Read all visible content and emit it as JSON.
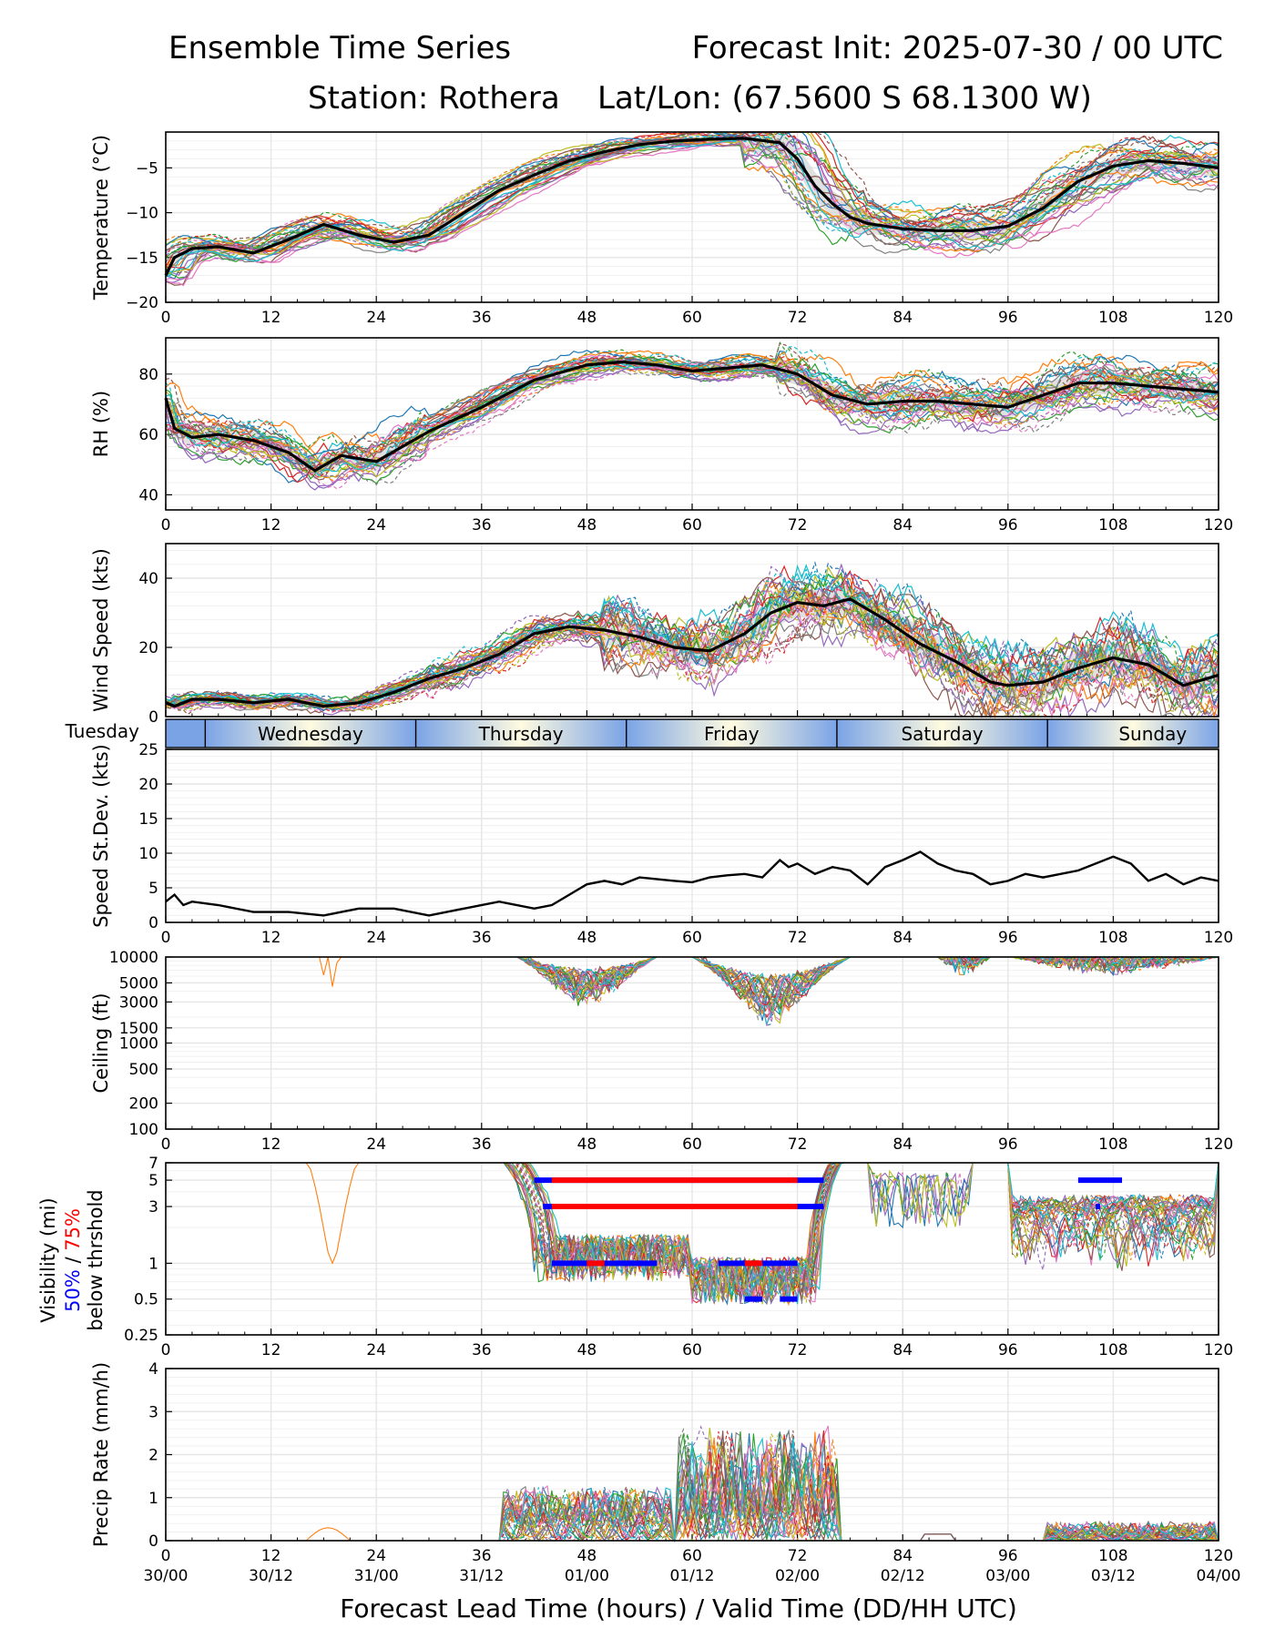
{
  "header": {
    "title_left": "Ensemble Time Series",
    "title_right": "Forecast Init: 2025-07-30 / 00 UTC",
    "station": "Station: Rothera",
    "latlon": "Lat/Lon: (67.5600 S 68.1300 W)"
  },
  "x_axis": {
    "label": "Forecast Lead Time (hours) / Valid Time (DD/HH UTC)",
    "ticks": [
      0,
      12,
      24,
      36,
      48,
      60,
      72,
      84,
      96,
      108,
      120
    ],
    "valid_labels": [
      "30/00",
      "30/12",
      "31/00",
      "31/12",
      "01/00",
      "01/12",
      "02/00",
      "02/12",
      "03/00",
      "03/12",
      "04/00"
    ],
    "range": [
      0,
      120
    ]
  },
  "day_band": {
    "leading_label": "Tuesday",
    "days": [
      {
        "name": "Wednesday",
        "start": 4.5,
        "end": 28.5
      },
      {
        "name": "Thursday",
        "start": 28.5,
        "end": 52.5
      },
      {
        "name": "Friday",
        "start": 52.5,
        "end": 76.5
      },
      {
        "name": "Saturday",
        "start": 76.5,
        "end": 100.5
      },
      {
        "name": "Sunday",
        "start": 100.5,
        "end": 124.5
      }
    ]
  },
  "visibility_labels": {
    "line1": "Visibility (mi)",
    "p50": "50%",
    "sep": " / ",
    "p75": "75%",
    "line3": "below thrshold"
  },
  "colors": {
    "mean": "#000000",
    "spread": "#d9d9d9",
    "p50": "#0000ff",
    "p75": "#ff0000",
    "grid": "#e6e6e6",
    "members": [
      "#1f77b4",
      "#ff7f0e",
      "#2ca02c",
      "#d62728",
      "#9467bd",
      "#8c564b",
      "#e377c2",
      "#7f7f7f",
      "#bcbd22",
      "#17becf"
    ],
    "day_light": "#fffbe0",
    "day_dark": "#7aa3e6"
  },
  "chart_data": [
    {
      "id": "temperature",
      "type": "line",
      "ylabel": "Temperature (°C)",
      "ylim": [
        -20,
        -1
      ],
      "yticks": [
        -20,
        -15,
        -10,
        -5
      ],
      "mean": {
        "x": [
          0,
          1,
          3,
          6,
          10,
          14,
          18,
          22,
          26,
          30,
          34,
          38,
          42,
          46,
          50,
          54,
          58,
          62,
          66,
          70,
          72,
          74,
          76,
          78,
          80,
          84,
          88,
          92,
          96,
          100,
          104,
          108,
          112,
          116,
          120
        ],
        "y": [
          -17,
          -15,
          -14,
          -13.8,
          -14.5,
          -13,
          -11.3,
          -12.5,
          -13.3,
          -12.5,
          -10,
          -7.5,
          -5.8,
          -4.2,
          -3.2,
          -2.4,
          -2,
          -1.8,
          -1.7,
          -2.2,
          -4,
          -7,
          -9,
          -10.5,
          -11.2,
          -11.8,
          -12,
          -12,
          -11.5,
          -9.5,
          -6.5,
          -4.8,
          -4.2,
          -4.5,
          -5
        ]
      }
    },
    {
      "id": "rh",
      "type": "line",
      "ylabel": "RH (%)",
      "ylim": [
        35,
        92
      ],
      "yticks": [
        40,
        60,
        80
      ],
      "mean": {
        "x": [
          0,
          1,
          3,
          6,
          10,
          14,
          17,
          20,
          24,
          30,
          36,
          42,
          48,
          52,
          56,
          60,
          64,
          68,
          72,
          76,
          80,
          84,
          88,
          92,
          96,
          100,
          104,
          108,
          112,
          116,
          120
        ],
        "y": [
          72,
          62,
          59,
          60,
          58,
          54,
          48,
          53,
          51,
          61,
          69,
          78,
          83,
          84,
          83,
          81,
          82,
          83,
          80,
          73,
          70,
          71,
          71,
          70,
          69,
          73,
          77,
          77,
          76,
          75,
          74
        ]
      }
    },
    {
      "id": "wind",
      "type": "line",
      "ylabel": "Wind Speed (kts)",
      "ylim": [
        0,
        50
      ],
      "yticks": [
        0,
        20,
        40
      ],
      "mean": {
        "x": [
          0,
          1,
          3,
          6,
          10,
          14,
          18,
          22,
          26,
          30,
          34,
          38,
          42,
          46,
          50,
          54,
          58,
          62,
          66,
          69,
          72,
          75,
          78,
          82,
          86,
          90,
          94,
          96,
          100,
          104,
          108,
          112,
          116,
          120
        ],
        "y": [
          4,
          3,
          5,
          5,
          4,
          5,
          3,
          4,
          7,
          11,
          14,
          18,
          24,
          26,
          25,
          23,
          20,
          19,
          24,
          30,
          33,
          32,
          34,
          28,
          21,
          16,
          10,
          9,
          10,
          14,
          17,
          15,
          9,
          12
        ]
      }
    },
    {
      "id": "speed_stdev",
      "type": "line",
      "ylabel": "Speed St.Dev. (kts)",
      "ylim": [
        0,
        25
      ],
      "yticks": [
        0,
        5,
        10,
        15,
        20,
        25
      ],
      "mean": {
        "x": [
          0,
          1,
          2,
          3,
          6,
          10,
          14,
          18,
          22,
          26,
          30,
          34,
          38,
          42,
          44,
          46,
          48,
          50,
          52,
          54,
          58,
          60,
          62,
          64,
          66,
          68,
          70,
          71,
          72,
          74,
          76,
          78,
          80,
          82,
          84,
          86,
          88,
          90,
          92,
          94,
          96,
          98,
          100,
          104,
          108,
          110,
          112,
          114,
          116,
          118,
          120
        ],
        "y": [
          3,
          4,
          2.5,
          3,
          2.5,
          1.5,
          1.5,
          1,
          2,
          2,
          1,
          2,
          3,
          2,
          2.5,
          4,
          5.5,
          6,
          5.5,
          6.5,
          6,
          5.8,
          6.5,
          6.8,
          7,
          6.5,
          9,
          8,
          8.5,
          7,
          8,
          7.5,
          5.5,
          8,
          9,
          10.2,
          8.5,
          7.5,
          7,
          5.5,
          6,
          7,
          6.5,
          7.5,
          9.5,
          8.5,
          6,
          7,
          5.5,
          6.5,
          6
        ]
      }
    },
    {
      "id": "ceiling",
      "type": "line",
      "ylabel": "Ceiling (ft)",
      "scale": "log",
      "ylim": [
        100,
        10000
      ],
      "yticks": [
        100,
        200,
        500,
        1000,
        1500,
        3000,
        5000,
        10000
      ]
    },
    {
      "id": "visibility",
      "type": "line",
      "scale": "log",
      "ylim": [
        0.25,
        7
      ],
      "yticks": [
        0.25,
        0.5,
        1,
        3,
        5,
        7
      ],
      "threshold_bars": [
        {
          "level": 5,
          "p50": [
            [
              42,
              75
            ]
          ],
          "p75": [
            [
              44,
              72
            ]
          ]
        },
        {
          "level": 3,
          "p50": [
            [
              43,
              75
            ]
          ],
          "p75": [
            [
              44,
              72
            ]
          ]
        },
        {
          "level": 1,
          "p50": [
            [
              44,
              56
            ],
            [
              63,
              72
            ]
          ],
          "p75": [
            [
              48,
              50
            ],
            [
              66,
              68
            ]
          ]
        },
        {
          "level": 0.5,
          "p50": [
            [
              66,
              68
            ],
            [
              70,
              72
            ]
          ],
          "p75": []
        },
        {
          "level": 5,
          "p50": [
            [
              104,
              109
            ]
          ],
          "p75": []
        },
        {
          "level": 3,
          "p50": [
            [
              106,
              106.5
            ]
          ],
          "p75": []
        }
      ]
    },
    {
      "id": "precip",
      "type": "line",
      "ylabel": "Precip Rate (mm/h)",
      "ylim": [
        0,
        4
      ],
      "yticks": [
        0,
        1,
        2,
        3,
        4
      ]
    }
  ]
}
